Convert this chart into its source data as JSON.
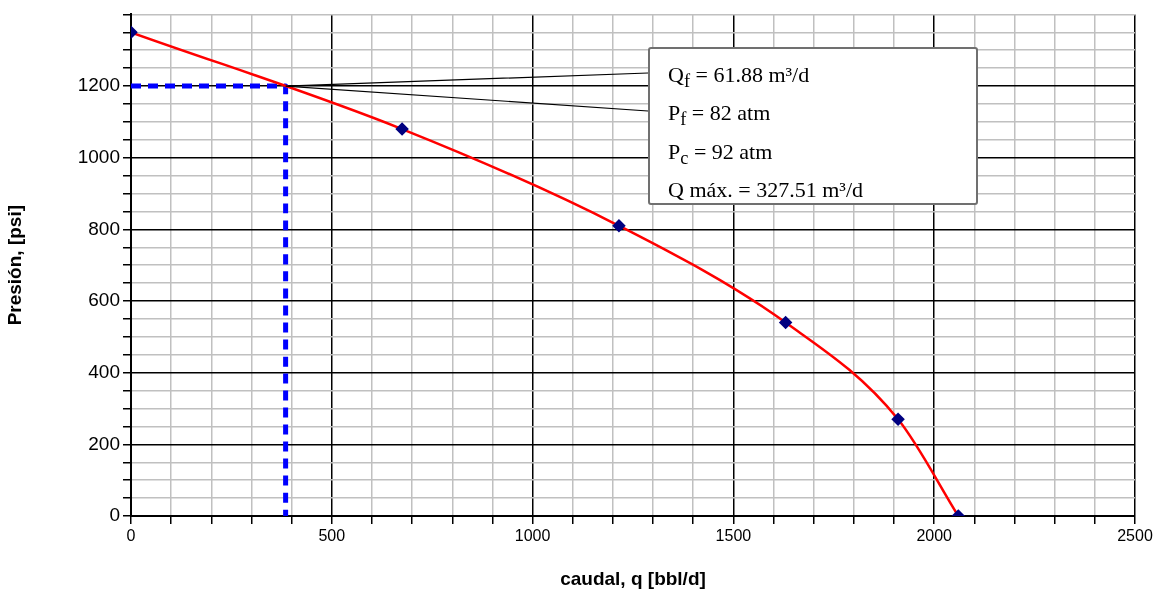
{
  "chart_data": {
    "type": "line",
    "xlabel": "caudal, q [bbl/d]",
    "ylabel": "Presión, [psi]",
    "xlim": [
      0,
      2500
    ],
    "ylim": [
      0,
      1400
    ],
    "xticks": [
      0,
      {
        "value": 100,
        "label": null
      },
      {
        "value": 200,
        "label": null
      },
      {
        "value": 300,
        "label": null
      },
      {
        "value": 400,
        "label": null
      },
      500,
      {
        "value": 600,
        "label": null
      },
      {
        "value": 700,
        "label": null
      },
      {
        "value": 800,
        "label": null
      },
      {
        "value": 900,
        "label": null
      },
      1000,
      {
        "value": 1100,
        "label": null
      },
      {
        "value": 1200,
        "label": null
      },
      {
        "value": 1300,
        "label": null
      },
      {
        "value": 1400,
        "label": null
      },
      1500,
      {
        "value": 1600,
        "label": null
      },
      {
        "value": 1700,
        "label": null
      },
      {
        "value": 1800,
        "label": null
      },
      {
        "value": 1900,
        "label": null
      },
      2000,
      {
        "value": 2100,
        "label": null
      },
      {
        "value": 2200,
        "label": null
      },
      {
        "value": 2300,
        "label": null
      },
      {
        "value": 2400,
        "label": null
      },
      2500
    ],
    "yticks": [
      0,
      {
        "value": 50,
        "label": null
      },
      {
        "value": 100,
        "label": null
      },
      {
        "value": 150,
        "label": null
      },
      200,
      {
        "value": 250,
        "label": null
      },
      {
        "value": 300,
        "label": null
      },
      {
        "value": 350,
        "label": null
      },
      400,
      {
        "value": 450,
        "label": null
      },
      {
        "value": 500,
        "label": null
      },
      {
        "value": 550,
        "label": null
      },
      600,
      {
        "value": 650,
        "label": null
      },
      {
        "value": 700,
        "label": null
      },
      {
        "value": 750,
        "label": null
      },
      800,
      {
        "value": 850,
        "label": null
      },
      {
        "value": 900,
        "label": null
      },
      {
        "value": 950,
        "label": null
      },
      1000,
      {
        "value": 1050,
        "label": null
      },
      {
        "value": 1100,
        "label": null
      },
      {
        "value": 1150,
        "label": null
      },
      1200,
      {
        "value": 1250,
        "label": null
      },
      {
        "value": 1300,
        "label": null
      },
      {
        "value": 1350,
        "label": null
      },
      {
        "value": 1400,
        "label": null
      }
    ],
    "grid": true,
    "legend": false,
    "series": [
      {
        "color": "#ff0000",
        "colors": [
          "#000080",
          "#000080",
          "#000080",
          "#000080",
          "#000080",
          "#000080"
        ],
        "marker": "diamond",
        "line_style": "solid",
        "x": [
          0,
          675,
          1215,
          1630,
          1910,
          2060
        ],
        "values": [
          1350,
          1080,
          810,
          540,
          270,
          0
        ]
      },
      {
        "color": "#0000ff",
        "marker": "none",
        "line_style": "dashed",
        "x": [
          0,
          385,
          385
        ],
        "values": [
          1200,
          1200,
          0
        ]
      }
    ],
    "annotations": [
      "Q$_{f}$ = 61.88 m³/d",
      "P$_{f}$ = 82 atm",
      "P$_{c}$ = 92 atm",
      "Q máx. = 327.51 m³/d"
    ]
  }
}
